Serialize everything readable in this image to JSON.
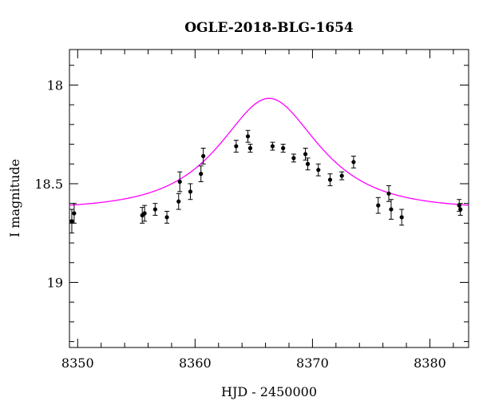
{
  "chart_data": {
    "type": "scatter",
    "title": "OGLE-2018-BLG-1654",
    "xlabel": "HJD - 2450000",
    "ylabel": "I magnitude",
    "xlim": [
      8349.3,
      8383.3
    ],
    "ylim": [
      19.33,
      17.82
    ],
    "y_inverted": true,
    "grid": false,
    "xticks_major": [
      8350,
      8360,
      8370,
      8380
    ],
    "yticks_major": [
      18,
      18.5,
      19
    ],
    "xtick_labels": [
      "8350",
      "8360",
      "8370",
      "8380"
    ],
    "ytick_labels": [
      "18",
      "18.5",
      "19"
    ],
    "point_color": "#000000",
    "curve_color": "#ff00ff",
    "series": [
      {
        "kind": "points_with_errorbars",
        "points": [
          {
            "x": 8349.5,
            "y": 18.69,
            "err": 0.06
          },
          {
            "x": 8349.7,
            "y": 18.65,
            "err": 0.05
          },
          {
            "x": 8355.5,
            "y": 18.66,
            "err": 0.04
          },
          {
            "x": 8355.7,
            "y": 18.65,
            "err": 0.04
          },
          {
            "x": 8356.6,
            "y": 18.63,
            "err": 0.03
          },
          {
            "x": 8357.6,
            "y": 18.67,
            "err": 0.03
          },
          {
            "x": 8358.6,
            "y": 18.59,
            "err": 0.04
          },
          {
            "x": 8358.7,
            "y": 18.49,
            "err": 0.05
          },
          {
            "x": 8359.6,
            "y": 18.54,
            "err": 0.04
          },
          {
            "x": 8360.5,
            "y": 18.45,
            "err": 0.04
          },
          {
            "x": 8360.7,
            "y": 18.36,
            "err": 0.04
          },
          {
            "x": 8363.5,
            "y": 18.31,
            "err": 0.03
          },
          {
            "x": 8364.5,
            "y": 18.26,
            "err": 0.03
          },
          {
            "x": 8364.7,
            "y": 18.32,
            "err": 0.02
          },
          {
            "x": 8366.6,
            "y": 18.31,
            "err": 0.02
          },
          {
            "x": 8367.5,
            "y": 18.32,
            "err": 0.02
          },
          {
            "x": 8368.4,
            "y": 18.37,
            "err": 0.02
          },
          {
            "x": 8369.4,
            "y": 18.35,
            "err": 0.03
          },
          {
            "x": 8369.6,
            "y": 18.4,
            "err": 0.03
          },
          {
            "x": 8370.5,
            "y": 18.43,
            "err": 0.03
          },
          {
            "x": 8371.5,
            "y": 18.48,
            "err": 0.03
          },
          {
            "x": 8372.5,
            "y": 18.46,
            "err": 0.02
          },
          {
            "x": 8373.5,
            "y": 18.39,
            "err": 0.03
          },
          {
            "x": 8375.6,
            "y": 18.61,
            "err": 0.04
          },
          {
            "x": 8376.5,
            "y": 18.55,
            "err": 0.04
          },
          {
            "x": 8376.7,
            "y": 18.63,
            "err": 0.05
          },
          {
            "x": 8377.6,
            "y": 18.67,
            "err": 0.04
          },
          {
            "x": 8382.5,
            "y": 18.61,
            "err": 0.03
          },
          {
            "x": 8382.6,
            "y": 18.63,
            "err": 0.03
          }
        ]
      },
      {
        "kind": "model_curve",
        "model": "paczynski",
        "params": {
          "t0": 8366.3,
          "u0": 0.7,
          "tE": 6.1,
          "baseline": 18.63
        }
      }
    ]
  }
}
